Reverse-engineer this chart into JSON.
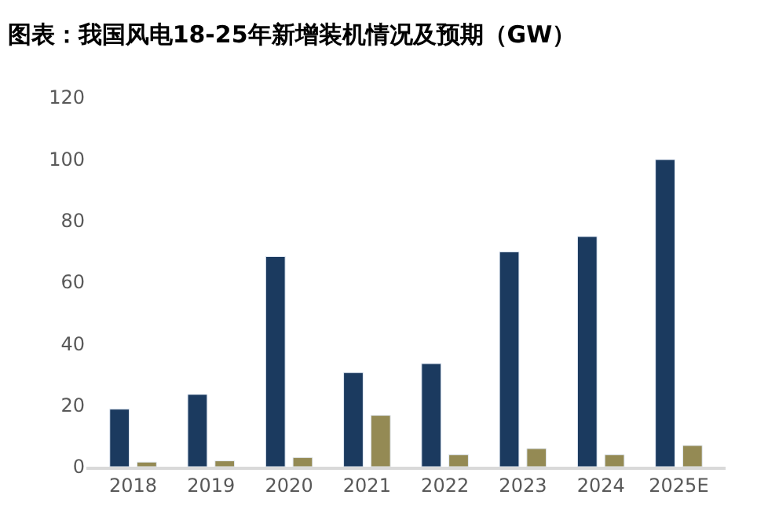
{
  "chart_data": {
    "type": "bar",
    "title": "图表：我国风电18-25年新增装机情况及预期（GW）",
    "categories": [
      "2018",
      "2019",
      "2020",
      "2021",
      "2022",
      "2023",
      "2024",
      "2025E"
    ],
    "series": [
      {
        "color": "#1b3a5f",
        "values": [
          18.7,
          23.5,
          68.3,
          30.6,
          33.5,
          69.8,
          74.8,
          99.8
        ]
      },
      {
        "color": "#948a54",
        "values": [
          1.5,
          1.9,
          3.0,
          16.7,
          3.9,
          5.9,
          3.9,
          6.9
        ]
      }
    ],
    "ylim": [
      0,
      120
    ],
    "yticks": [
      0,
      20,
      40,
      60,
      80,
      100,
      120
    ]
  }
}
